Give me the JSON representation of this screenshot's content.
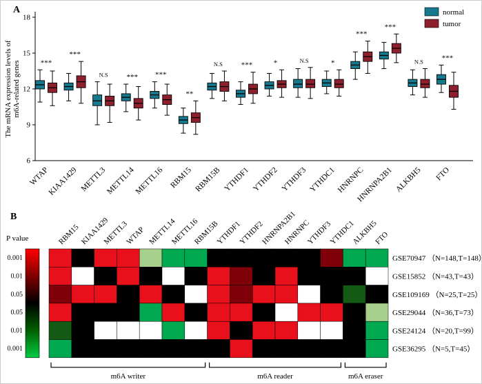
{
  "figure": {
    "panel_a_label": "A",
    "panel_b_label": "B"
  },
  "chart_data": [
    {
      "type": "boxplot",
      "panel": "A",
      "ylabel_lines": [
        "The mRNA expression levels of",
        "m6A-related genes"
      ],
      "ylim": [
        6,
        18
      ],
      "yticks": [
        6,
        9,
        12,
        15,
        18
      ],
      "box_stats_order": "whisker_low, q1, median, q3, whisker_high",
      "legend": [
        {
          "label": "normal",
          "color": "#17798e"
        },
        {
          "label": "tumor",
          "color": "#8e1f2c"
        }
      ],
      "genes": [
        {
          "name": "WTAP",
          "sig": "***",
          "normal": [
            10.9,
            12.0,
            12.35,
            12.7,
            13.6
          ],
          "tumor": [
            10.6,
            11.7,
            12.1,
            12.5,
            13.5
          ]
        },
        {
          "name": "KIAA1429",
          "sig": "***",
          "normal": [
            11.0,
            11.9,
            12.2,
            12.5,
            13.3
          ],
          "tumor": [
            10.8,
            12.1,
            12.6,
            13.1,
            14.3
          ]
        },
        {
          "name": "METTL3",
          "sig": "N.S",
          "normal": [
            9.0,
            10.6,
            11.0,
            11.5,
            12.6
          ],
          "tumor": [
            9.2,
            10.6,
            11.0,
            11.4,
            12.4
          ]
        },
        {
          "name": "METTL14",
          "sig": "***",
          "normal": [
            10.1,
            11.0,
            11.3,
            11.6,
            12.4
          ],
          "tumor": [
            9.4,
            10.4,
            10.8,
            11.2,
            12.2
          ]
        },
        {
          "name": "METTL16",
          "sig": "***",
          "normal": [
            10.4,
            11.2,
            11.5,
            11.8,
            12.6
          ],
          "tumor": [
            9.8,
            10.7,
            11.1,
            11.5,
            12.4
          ]
        },
        {
          "name": "RBM15",
          "sig": "**",
          "normal": [
            8.3,
            9.1,
            9.4,
            9.7,
            10.4
          ],
          "tumor": [
            8.2,
            9.2,
            9.6,
            10.0,
            11.0
          ]
        },
        {
          "name": "RBM15B",
          "sig": "N.S",
          "normal": [
            11.2,
            11.9,
            12.2,
            12.5,
            13.3
          ],
          "tumor": [
            11.0,
            11.8,
            12.2,
            12.6,
            13.5
          ]
        },
        {
          "name": "YTHDF1",
          "sig": "***",
          "normal": [
            10.7,
            11.3,
            11.6,
            11.9,
            12.6
          ],
          "tumor": [
            10.8,
            11.6,
            12.0,
            12.4,
            13.4
          ]
        },
        {
          "name": "YTHDF2",
          "sig": "*",
          "normal": [
            11.4,
            12.0,
            12.3,
            12.6,
            13.3
          ],
          "tumor": [
            11.3,
            12.1,
            12.4,
            12.7,
            13.6
          ]
        },
        {
          "name": "YTHDF3",
          "sig": "N.S",
          "normal": [
            11.3,
            12.1,
            12.4,
            12.8,
            13.7
          ],
          "tumor": [
            11.2,
            12.1,
            12.4,
            12.8,
            13.8
          ]
        },
        {
          "name": "YTHDC1",
          "sig": "*",
          "normal": [
            11.6,
            12.2,
            12.5,
            12.8,
            13.5
          ],
          "tumor": [
            11.4,
            12.1,
            12.4,
            12.8,
            13.6
          ]
        },
        {
          "name": "HNRNPC",
          "sig": "***",
          "normal": [
            12.8,
            13.7,
            14.0,
            14.3,
            15.1
          ],
          "tumor": [
            13.3,
            14.3,
            14.7,
            15.1,
            16.0
          ]
        },
        {
          "name": "HNRNPA2B1",
          "sig": "***",
          "normal": [
            13.7,
            14.5,
            14.8,
            15.1,
            15.9
          ],
          "tumor": [
            14.2,
            15.0,
            15.4,
            15.8,
            16.6
          ]
        },
        {
          "name": "ALKBH5",
          "sig": "N.S",
          "normal": [
            11.5,
            12.2,
            12.5,
            12.8,
            13.6
          ],
          "tumor": [
            11.3,
            12.1,
            12.4,
            12.8,
            13.7
          ]
        },
        {
          "name": "FTO",
          "sig": "***",
          "normal": [
            11.7,
            12.4,
            12.8,
            13.2,
            14.0
          ],
          "tumor": [
            10.3,
            11.3,
            11.8,
            12.3,
            13.4
          ]
        }
      ]
    },
    {
      "type": "heatmap",
      "panel": "B",
      "pvalue_label": "P value",
      "colorbar_ticks": [
        "0.001",
        "0.01",
        "0.05",
        "0.05",
        "0.01",
        "0.001"
      ],
      "colorbar_stops": [
        "#ff0000",
        "#7f0000",
        "#000000",
        "#005f00",
        "#00cc44"
      ],
      "palette": {
        "R": "#e8101a",
        "DR": "#7f0008",
        "K": "#000000",
        "W": "#ffffff",
        "G": "#00a84f",
        "LG": "#a8d08d",
        "DG": "#145a14"
      },
      "columns": [
        "RBM15",
        "KIAA1429",
        "METTL3",
        "WTAP",
        "METTL14",
        "METTL16",
        "RBM15B",
        "YTHDF1",
        "YTHDF2",
        "HNRNPA2B1",
        "HNRNPC",
        "YTHDF3",
        "YTHDC1",
        "ALKBH5",
        "FTO"
      ],
      "rows": [
        {
          "label": "GSE70947 （N=148,T=148）",
          "cells": [
            "R",
            "K",
            "R",
            "R",
            "LG",
            "G",
            "G",
            "K",
            "K",
            "K",
            "K",
            "K",
            "DR",
            "G",
            "G"
          ]
        },
        {
          "label": "GSE15852 （N=43,T=43）",
          "cells": [
            "R",
            "W",
            "K",
            "R",
            "K",
            "W",
            "K",
            "R",
            "DR",
            "K",
            "R",
            "K",
            "K",
            "K",
            "W"
          ]
        },
        {
          "label": "GSE109169 （N=25,T=25）",
          "cells": [
            "DR",
            "R",
            "R",
            "K",
            "R",
            "K",
            "W",
            "R",
            "DR",
            "R",
            "R",
            "W",
            "K",
            "DG",
            "K"
          ]
        },
        {
          "label": "GSE29044 （N=36,T=73）",
          "cells": [
            "R",
            "K",
            "K",
            "K",
            "G",
            "R",
            "K",
            "R",
            "R",
            "K",
            "W",
            "R",
            "R",
            "K",
            "LG"
          ]
        },
        {
          "label": "GSE24124 （N=20,T=99）",
          "cells": [
            "DG",
            "K",
            "W",
            "W",
            "W",
            "G",
            "W",
            "R",
            "K",
            "R",
            "R",
            "W",
            "W",
            "K",
            "G"
          ]
        },
        {
          "label": "GSE36295 （N=5,T=45）",
          "cells": [
            "G",
            "K",
            "K",
            "K",
            "K",
            "K",
            "K",
            "K",
            "R",
            "K",
            "K",
            "K",
            "K",
            "K",
            "G"
          ]
        }
      ],
      "groups": [
        {
          "label": "m6A writer",
          "from": 0,
          "to": 6
        },
        {
          "label": "m6A reader",
          "from": 7,
          "to": 12
        },
        {
          "label": "m6A eraser",
          "from": 13,
          "to": 14
        }
      ]
    }
  ]
}
